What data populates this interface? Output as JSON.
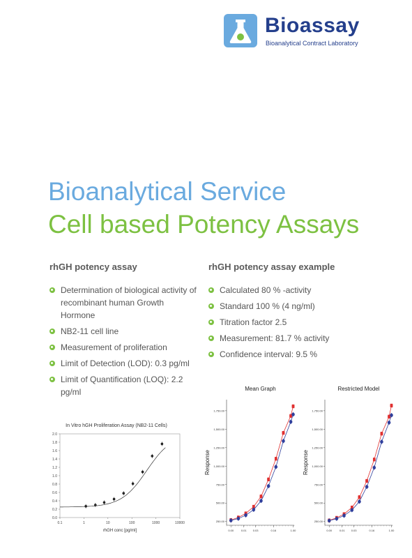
{
  "brand": {
    "name": "Bioassay",
    "tagline": "Bioanalytical Contract Laboratory",
    "colors": {
      "navy": "#243f8c",
      "light_blue": "#6aaadf",
      "green": "#7dc142"
    }
  },
  "heading": {
    "line1": "Bioanalytical Service",
    "line2": "Cell based Potency Assays"
  },
  "left_column": {
    "title": "rhGH potency assay",
    "bullets": [
      "Determination  of biological activity of recombinant human Growth Hormone",
      "NB2-11 cell line",
      "Measurement of proliferation",
      "Limit of Detection (LOD): 0.3 pg/ml",
      "Limit of Quantification (LOQ): 2.2 pg/ml"
    ]
  },
  "right_column": {
    "title": "rhGH potency assay example",
    "bullets": [
      "Calculated 80 % -activity",
      "Standard 100 % (4 ng/ml)",
      "Titration factor 2.5",
      "Measurement: 81.7 % activity",
      "Confidence interval: 9.5 %"
    ]
  },
  "chart_data": [
    {
      "type": "scatter",
      "title": "In Vitro hGH Proliferation Assay (NB2-11 Cells)",
      "xlabel": "rhGH conc [pg/ml]",
      "ylabel": "",
      "x_scale": "log",
      "xlim": [
        0.1,
        10000
      ],
      "ylim": [
        0,
        2.0
      ],
      "x_ticks": [
        "0.1",
        "1",
        "10",
        "100",
        "1000",
        "10000"
      ],
      "y_ticks": [
        "0.0",
        "0.2",
        "0.4",
        "0.6",
        "0.8",
        "1.0",
        "1.2",
        "1.4",
        "1.6",
        "1.8",
        "2.0"
      ],
      "grid": false,
      "series": [
        {
          "x": [
            1.2,
            3,
            7,
            18,
            45,
            110,
            280,
            700,
            1800
          ],
          "y": [
            0.27,
            0.3,
            0.36,
            0.44,
            0.58,
            0.81,
            1.09,
            1.47,
            1.76
          ],
          "fit": true
        }
      ]
    },
    {
      "type": "line",
      "title": "Mean Graph",
      "xlabel": "",
      "ylabel": "Response",
      "ylim": [
        200,
        1900
      ],
      "x_ticks": [
        "0.00",
        "0.01",
        "0.03",
        "0.16",
        "1.00"
      ],
      "y_ticks": [
        "250.00",
        "500.00",
        "750.00",
        "1,000.00",
        "1,250.00",
        "1,500.00",
        "1,750.00"
      ],
      "colors": {
        "standard": "#e03030",
        "sample": "#2f3f9c"
      },
      "series": [
        {
          "marker": "square",
          "color": "#e03030",
          "x": [
            0.003,
            0.006,
            0.012,
            0.025,
            0.05,
            0.1,
            0.2,
            0.4,
            0.8,
            1.0
          ],
          "y": [
            270,
            305,
            360,
            450,
            590,
            820,
            1100,
            1450,
            1680,
            1810
          ]
        },
        {
          "marker": "diamond",
          "color": "#2f3f9c",
          "x": [
            0.003,
            0.006,
            0.012,
            0.025,
            0.05,
            0.1,
            0.2,
            0.4,
            0.8,
            1.0
          ],
          "y": [
            265,
            290,
            335,
            410,
            530,
            730,
            990,
            1340,
            1600,
            1700
          ]
        }
      ]
    },
    {
      "type": "line",
      "title": "Restricted Model",
      "xlabel": "",
      "ylabel": "Response",
      "ylim": [
        200,
        1900
      ],
      "x_ticks": [
        "0.00",
        "0.01",
        "0.03",
        "0.16",
        "1.00"
      ],
      "y_ticks": [
        "250.00",
        "500.00",
        "750.00",
        "1,000.00",
        "1,250.00",
        "1,500.00",
        "1,750.00"
      ],
      "colors": {
        "standard": "#e03030",
        "sample": "#2f3f9c"
      },
      "series": [
        {
          "marker": "square",
          "color": "#e03030",
          "x": [
            0.003,
            0.006,
            0.012,
            0.025,
            0.05,
            0.1,
            0.2,
            0.4,
            0.8,
            1.0
          ],
          "y": [
            265,
            300,
            350,
            440,
            580,
            800,
            1090,
            1440,
            1670,
            1820
          ]
        },
        {
          "marker": "diamond",
          "color": "#2f3f9c",
          "x": [
            0.003,
            0.006,
            0.012,
            0.025,
            0.05,
            0.1,
            0.2,
            0.4,
            0.8,
            1.0
          ],
          "y": [
            262,
            288,
            330,
            405,
            520,
            720,
            980,
            1330,
            1590,
            1690
          ]
        }
      ]
    }
  ]
}
